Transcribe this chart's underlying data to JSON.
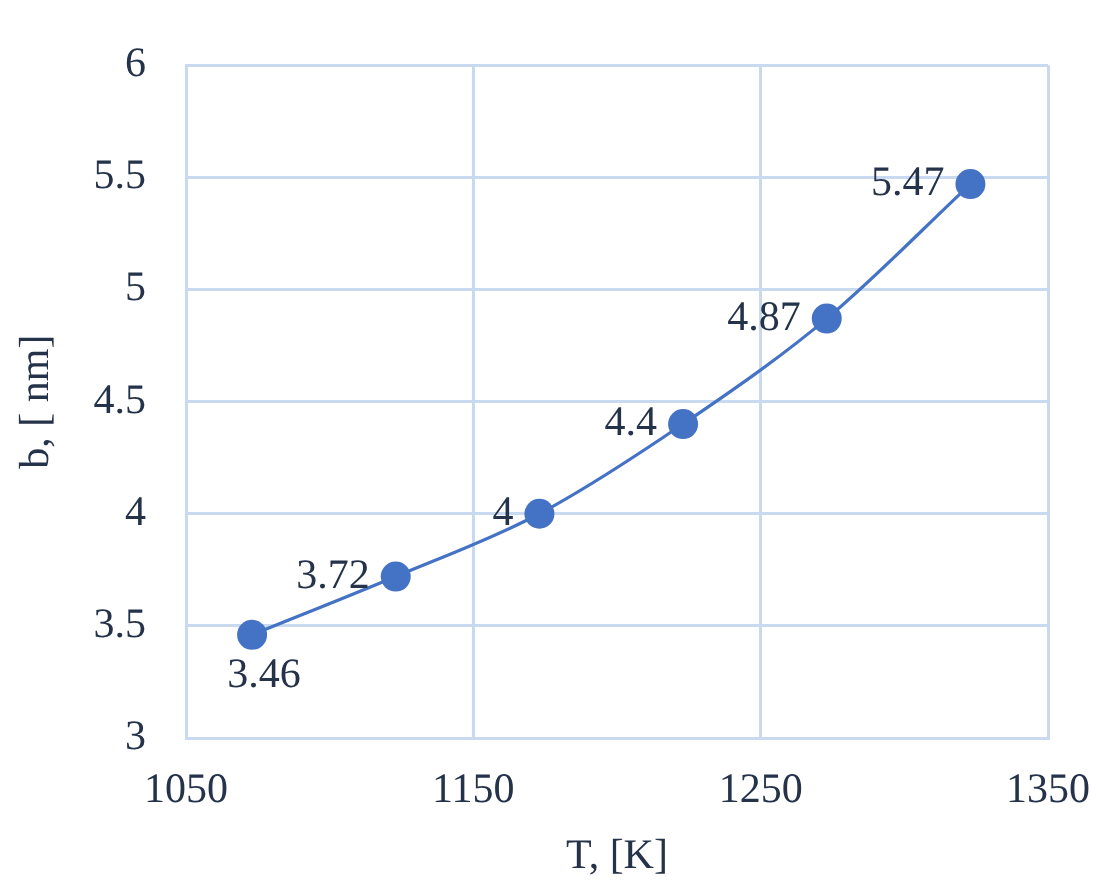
{
  "chart_data": {
    "type": "line",
    "xlabel": "T, [K]",
    "ylabel": "b, [ nm]",
    "x": [
      1073,
      1123,
      1173,
      1223,
      1273,
      1323
    ],
    "series": [
      {
        "color": "#4472c4",
        "values": [
          3.46,
          3.72,
          4,
          4.4,
          4.87,
          5.47
        ]
      }
    ],
    "xlim": [
      1050,
      1350
    ],
    "xticks": [
      1050,
      1150,
      1250,
      1350
    ],
    "ylim": [
      3,
      6
    ],
    "yticks": [
      3,
      3.5,
      4,
      4.5,
      5,
      5.5,
      6
    ],
    "grid": true,
    "data_labels": true,
    "marker": "circle",
    "line_style": "solid"
  }
}
